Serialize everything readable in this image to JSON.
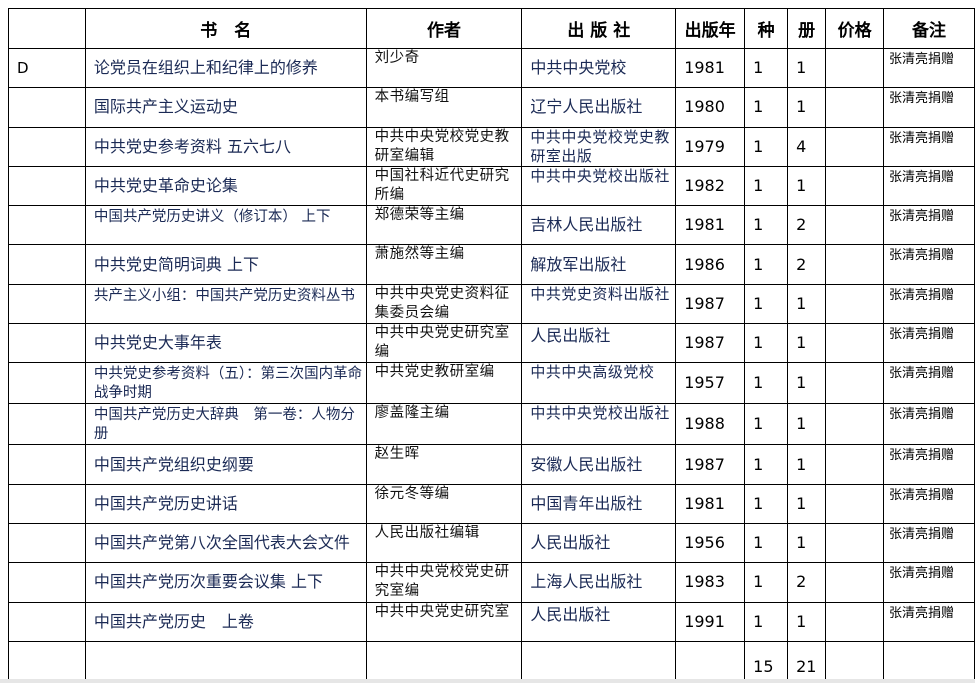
{
  "headers": {
    "code": "",
    "title": "书　名",
    "author": "作者",
    "publisher": "出 版 社",
    "year": "出版年",
    "kinds": "种",
    "volumes": "册",
    "price": "价格",
    "note": "备注"
  },
  "rows": [
    {
      "code": "D",
      "title": "论党员在组织上和纪律上的修养",
      "author": "刘少奇",
      "publisher": "中共中央党校",
      "year": "1981",
      "kinds": "1",
      "volumes": "1",
      "price": "",
      "note": "张清亮捐赠"
    },
    {
      "code": "",
      "title": "国际共产主义运动史",
      "author": "本书编写组",
      "publisher": "辽宁人民出版社",
      "year": "1980",
      "kinds": "1",
      "volumes": "1",
      "price": "",
      "note": "张清亮捐赠"
    },
    {
      "code": "",
      "title": "中共党史参考资料 五六七八",
      "author": "中共中央党校党史教研室编辑",
      "publisher": "中共中央党校党史教研室出版",
      "year": "1979",
      "kinds": "1",
      "volumes": "4",
      "price": "",
      "note": "张清亮捐赠"
    },
    {
      "code": "",
      "title": "中共党史革命史论集",
      "author": "中国社科近代史研究所编",
      "publisher": "中共中央党校出版社",
      "year": "1982",
      "kinds": "1",
      "volumes": "1",
      "price": "",
      "note": "张清亮捐赠"
    },
    {
      "code": "",
      "title": "中国共产党历史讲义（修订本） 上下",
      "author": "郑德荣等主编",
      "publisher": "吉林人民出版社",
      "year": "1981",
      "kinds": "1",
      "volumes": "2",
      "price": "",
      "note": "张清亮捐赠"
    },
    {
      "code": "",
      "title": "中共党史简明词典 上下",
      "author": "萧施然等主编",
      "publisher": "解放军出版社",
      "year": "1986",
      "kinds": "1",
      "volumes": "2",
      "price": "",
      "note": "张清亮捐赠"
    },
    {
      "code": "",
      "title": "共产主义小组：中国共产党历史资料丛书",
      "author": "中共中央党史资料征集委员会编",
      "publisher": "中共党史资料出版社",
      "year": "1987",
      "kinds": "1",
      "volumes": "1",
      "price": "",
      "note": "张清亮捐赠"
    },
    {
      "code": "",
      "title": "中共党史大事年表",
      "author": "中共中央党史研究室编",
      "publisher": "人民出版社",
      "year": "1987",
      "kinds": "1",
      "volumes": "1",
      "price": "",
      "note": "张清亮捐赠"
    },
    {
      "code": "",
      "title": "中共党史参考资料（五）：第三次国内革命战争时期",
      "author": "中共党史教研室编",
      "publisher": "中共中央高级党校",
      "year": "1957",
      "kinds": "1",
      "volumes": "1",
      "price": "",
      "note": "张清亮捐赠"
    },
    {
      "code": "",
      "title": "中国共产党历史大辞典　第一卷：人物分册",
      "author": "廖盖隆主编",
      "publisher": "中共中央党校出版社",
      "year": "1988",
      "kinds": "1",
      "volumes": "1",
      "price": "",
      "note": "张清亮捐赠"
    },
    {
      "code": "",
      "title": "中国共产党组织史纲要",
      "author": "赵生晖",
      "publisher": "安徽人民出版社",
      "year": "1987",
      "kinds": "1",
      "volumes": "1",
      "price": "",
      "note": "张清亮捐赠"
    },
    {
      "code": "",
      "title": "中国共产党历史讲话",
      "author": "徐元冬等编",
      "publisher": "中国青年出版社",
      "year": "1981",
      "kinds": "1",
      "volumes": "1",
      "price": "",
      "note": "张清亮捐赠"
    },
    {
      "code": "",
      "title": "中国共产党第八次全国代表大会文件",
      "author": "人民出版社编辑",
      "publisher": "人民出版社",
      "year": "1956",
      "kinds": "1",
      "volumes": "1",
      "price": "",
      "note": "张清亮捐赠"
    },
    {
      "code": "",
      "title": "中国共产党历次重要会议集 上下",
      "author": "中共中央党校党史研究室编",
      "publisher": "上海人民出版社",
      "year": "1983",
      "kinds": "1",
      "volumes": "2",
      "price": "",
      "note": "张清亮捐赠"
    },
    {
      "code": "",
      "title": "中国共产党历史　上卷",
      "author": "中共中央党史研究室",
      "publisher": "人民出版社",
      "year": "1991",
      "kinds": "1",
      "volumes": "1",
      "price": "",
      "note": "张清亮捐赠"
    }
  ],
  "totals": {
    "kinds": "15",
    "volumes": "21"
  }
}
